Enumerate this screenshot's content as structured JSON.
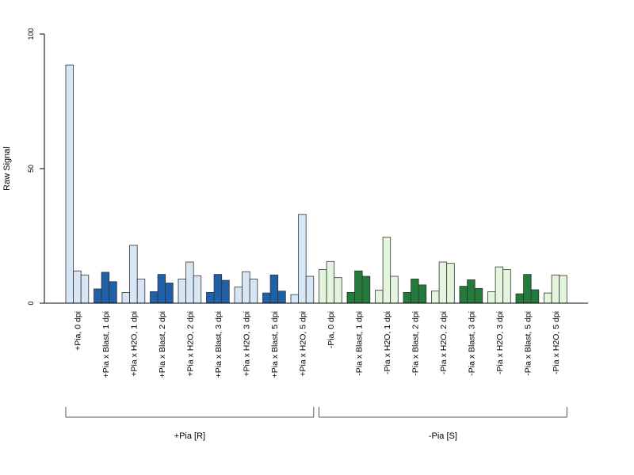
{
  "chart_data": {
    "type": "bar",
    "ylabel": "Raw Signal",
    "ylim": [
      0,
      100
    ],
    "yticks": [
      0,
      50,
      100
    ],
    "grid": false,
    "colors": {
      "light_blue": "#d6e6f5",
      "dark_blue": "#2060a8",
      "light_green": "#e3f5dc",
      "dark_green": "#237a3a",
      "outline": "#333333"
    },
    "categories": [
      {
        "label": "+Pia, 0 dpi",
        "color": "light_blue",
        "values": [
          88.5,
          12,
          10.5
        ]
      },
      {
        "label": "+Pia x Blast, 1 dpi",
        "color": "dark_blue",
        "values": [
          5.3,
          11.5,
          8
        ]
      },
      {
        "label": "+Pia x H2O, 1 dpi",
        "color": "light_blue",
        "values": [
          4,
          21.5,
          9
        ]
      },
      {
        "label": "+Pia x Blast, 2 dpi",
        "color": "dark_blue",
        "values": [
          4.3,
          10.7,
          7.5
        ]
      },
      {
        "label": "+Pia x H2O, 2 dpi",
        "color": "light_blue",
        "values": [
          9,
          15.3,
          10.2
        ]
      },
      {
        "label": "+Pia x Blast, 3 dpi",
        "color": "dark_blue",
        "values": [
          4,
          10.7,
          8.5
        ]
      },
      {
        "label": "+Pia x H2O, 3 dpi",
        "color": "light_blue",
        "values": [
          6,
          11.7,
          9
        ]
      },
      {
        "label": "+Pia x Blast, 5 dpi",
        "color": "dark_blue",
        "values": [
          3.8,
          10.5,
          4.5
        ]
      },
      {
        "label": "+Pia x H2O, 5 dpi",
        "color": "light_blue",
        "values": [
          3.2,
          33,
          10
        ]
      },
      {
        "label": "-Pia, 0 dpi",
        "color": "light_green",
        "values": [
          12.5,
          15.5,
          9.5
        ]
      },
      {
        "label": "-Pia x Blast, 1 dpi",
        "color": "dark_green",
        "values": [
          4,
          12,
          10
        ]
      },
      {
        "label": "-Pia x H2O, 1 dpi",
        "color": "light_green",
        "values": [
          4.8,
          24.5,
          10
        ]
      },
      {
        "label": "-Pia x Blast, 2 dpi",
        "color": "dark_green",
        "values": [
          4,
          9,
          6.8
        ]
      },
      {
        "label": "-Pia x H2O, 2 dpi",
        "color": "light_green",
        "values": [
          4.5,
          15.3,
          14.8
        ]
      },
      {
        "label": "-Pia x Blast, 3 dpi",
        "color": "dark_green",
        "values": [
          6.3,
          8.7,
          5.5
        ]
      },
      {
        "label": "-Pia x H2O, 3 dpi",
        "color": "light_green",
        "values": [
          4.3,
          13.5,
          12.5
        ]
      },
      {
        "label": "-Pia x Blast, 5 dpi",
        "color": "dark_green",
        "values": [
          3.5,
          10.7,
          5
        ]
      },
      {
        "label": "-Pia x H2O, 5 dpi",
        "color": "light_green",
        "values": [
          3.8,
          10.5,
          10.3
        ]
      }
    ],
    "groups": [
      {
        "label": "+Pia [R]",
        "from": 0,
        "to": 8
      },
      {
        "label": "-Pia [S]",
        "from": 9,
        "to": 17
      }
    ]
  }
}
